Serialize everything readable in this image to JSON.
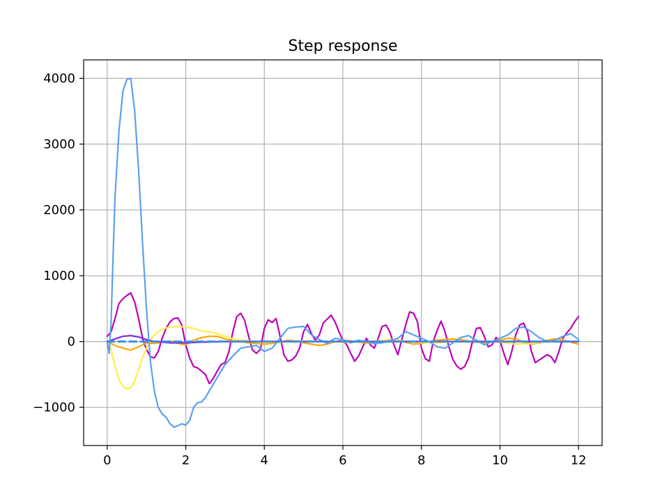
{
  "chart_data": {
    "type": "line",
    "title": "Step response",
    "xlabel": "",
    "ylabel": "",
    "xlim": [
      -0.6,
      12.6
    ],
    "ylim": [
      -1580,
      4280
    ],
    "xticks": [
      0,
      2,
      4,
      6,
      8,
      10,
      12
    ],
    "yticks": [
      -1000,
      0,
      1000,
      2000,
      3000,
      4000
    ],
    "xtick_labels": [
      "0",
      "2",
      "4",
      "6",
      "8",
      "10",
      "12"
    ],
    "ytick_labels": [
      "−1000",
      "0",
      "1000",
      "2000",
      "3000",
      "4000"
    ],
    "grid": true,
    "legend": "none",
    "series": [
      {
        "color": "#bb00bb",
        "style": "solid",
        "x": [
          0,
          0.1,
          0.2,
          0.3,
          0.4,
          0.5,
          0.6,
          0.7,
          0.8,
          0.9,
          1.0,
          1.1,
          1.2,
          1.3,
          1.4,
          1.5,
          1.6,
          1.7,
          1.8,
          1.9,
          2.0,
          2.1,
          2.2,
          2.3,
          2.4,
          2.5,
          2.6,
          2.7,
          2.8,
          2.9,
          3.0,
          3.1,
          3.2,
          3.3,
          3.4,
          3.5,
          3.6,
          3.7,
          3.8,
          3.9,
          4.0,
          4.1,
          4.2,
          4.3,
          4.4,
          4.5,
          4.6,
          4.7,
          4.8,
          4.9,
          5.0,
          5.1,
          5.2,
          5.3,
          5.4,
          5.5,
          5.6,
          5.7,
          5.8,
          5.9,
          6.0,
          6.1,
          6.2,
          6.3,
          6.4,
          6.5,
          6.6,
          6.7,
          6.8,
          6.9,
          7.0,
          7.1,
          7.2,
          7.3,
          7.4,
          7.5,
          7.6,
          7.7,
          7.8,
          7.9,
          8.0,
          8.1,
          8.2,
          8.3,
          8.4,
          8.5,
          8.6,
          8.7,
          8.8,
          8.9,
          9.0,
          9.1,
          9.2,
          9.3,
          9.4,
          9.5,
          9.6,
          9.7,
          9.8,
          9.9,
          10.0,
          10.1,
          10.2,
          10.3,
          10.4,
          10.5,
          10.6,
          10.7,
          10.8,
          10.9,
          11.0,
          11.1,
          11.2,
          11.3,
          11.4,
          11.5,
          11.6,
          11.7,
          11.8,
          11.9,
          12.0
        ],
        "y": [
          80,
          150,
          350,
          580,
          650,
          700,
          740,
          600,
          350,
          50,
          -120,
          -230,
          -250,
          -150,
          50,
          200,
          300,
          350,
          360,
          250,
          -50,
          -250,
          -380,
          -400,
          -450,
          -500,
          -640,
          -560,
          -450,
          -350,
          -320,
          -150,
          150,
          380,
          430,
          320,
          80,
          -130,
          -180,
          -120,
          200,
          330,
          290,
          350,
          80,
          -200,
          -300,
          -280,
          -220,
          -100,
          150,
          260,
          120,
          20,
          100,
          280,
          340,
          400,
          300,
          150,
          20,
          -50,
          -180,
          -300,
          -220,
          -90,
          50,
          -50,
          -100,
          50,
          230,
          250,
          140,
          -50,
          -200,
          30,
          250,
          450,
          430,
          300,
          -100,
          -260,
          -300,
          0,
          170,
          310,
          150,
          -80,
          -270,
          -370,
          -420,
          -380,
          -250,
          0,
          200,
          210,
          80,
          -80,
          -50,
          60,
          10,
          -180,
          -350,
          -150,
          100,
          250,
          280,
          150,
          -150,
          -320,
          -280,
          -240,
          -200,
          -230,
          -320,
          -150,
          50,
          130,
          200,
          300,
          380
        ]
      },
      {
        "color": "#ffa500",
        "style": "solid",
        "x": [
          0,
          0.2,
          0.4,
          0.6,
          0.8,
          1.0,
          1.2,
          1.4,
          1.6,
          1.8,
          2.0,
          2.2,
          2.4,
          2.6,
          2.8,
          3.0,
          3.2,
          3.4,
          3.6,
          3.8,
          4.0,
          4.2,
          4.4,
          4.6,
          4.8,
          5.0,
          5.2,
          5.4,
          5.6,
          5.8,
          6.0,
          6.2,
          6.4,
          6.6,
          6.8,
          7.0,
          7.2,
          7.4,
          7.6,
          7.8,
          8.0,
          8.2,
          8.4,
          8.6,
          8.8,
          9.0,
          9.2,
          9.4,
          9.6,
          9.8,
          10.0,
          10.2,
          10.4,
          10.6,
          10.8,
          11.0,
          11.2,
          11.4,
          11.6,
          11.8,
          12.0
        ],
        "y": [
          0,
          -60,
          -100,
          -130,
          -80,
          -20,
          -30,
          -10,
          10,
          -30,
          -50,
          20,
          60,
          80,
          80,
          40,
          10,
          0,
          -20,
          -30,
          -40,
          -30,
          -10,
          20,
          10,
          -20,
          -40,
          -60,
          -40,
          0,
          20,
          10,
          -10,
          -20,
          -20,
          10,
          30,
          20,
          -10,
          -40,
          -30,
          0,
          20,
          30,
          40,
          30,
          10,
          -10,
          -20,
          -10,
          20,
          50,
          40,
          -10,
          -40,
          -20,
          20,
          40,
          30,
          -10,
          -40
        ]
      },
      {
        "color": "#ffee44",
        "style": "solid",
        "x": [
          0,
          0.1,
          0.2,
          0.3,
          0.4,
          0.5,
          0.6,
          0.7,
          0.8,
          0.9,
          1.0,
          1.1,
          1.2,
          1.3,
          1.4,
          1.6,
          1.8,
          2.0,
          2.2,
          2.4,
          2.6,
          2.8,
          3.0,
          3.2,
          3.4,
          3.6,
          3.8,
          4.0,
          4.4,
          4.8,
          5.2,
          5.6,
          6.0,
          6.4,
          6.8,
          7.2,
          7.6,
          8.0,
          8.4,
          8.8,
          9.2,
          9.6,
          10.0,
          10.4,
          10.8,
          11.2,
          11.6,
          12.0
        ],
        "y": [
          0,
          -120,
          -380,
          -580,
          -680,
          -720,
          -700,
          -600,
          -430,
          -250,
          -100,
          20,
          100,
          150,
          190,
          220,
          230,
          220,
          200,
          160,
          150,
          120,
          80,
          40,
          20,
          10,
          0,
          -10,
          -10,
          10,
          10,
          0,
          -10,
          -10,
          10,
          20,
          10,
          -20,
          -20,
          0,
          10,
          10,
          -10,
          -40,
          -30,
          0,
          10,
          0
        ]
      },
      {
        "color": "#7a2be2",
        "style": "solid",
        "x": [
          0,
          0.2,
          0.4,
          0.6,
          0.8,
          1.0,
          1.2,
          1.6,
          2.0,
          2.4,
          3.0,
          4.0,
          5.0,
          6.0,
          8.0,
          10.0,
          12.0
        ],
        "y": [
          0,
          40,
          80,
          90,
          70,
          30,
          0,
          -20,
          -20,
          -10,
          0,
          0,
          0,
          0,
          0,
          0,
          0
        ]
      },
      {
        "color": "#5aa0f0",
        "style": "solid",
        "x": [
          0,
          0.05,
          0.1,
          0.15,
          0.2,
          0.3,
          0.4,
          0.5,
          0.6,
          0.7,
          0.8,
          0.9,
          1.0,
          1.1,
          1.2,
          1.3,
          1.4,
          1.5,
          1.6,
          1.7,
          1.8,
          1.9,
          2.0,
          2.1,
          2.2,
          2.3,
          2.4,
          2.5,
          2.6,
          2.7,
          2.8,
          2.9,
          3.0,
          3.2,
          3.4,
          3.6,
          3.8,
          4.0,
          4.2,
          4.4,
          4.6,
          4.8,
          5.0,
          5.2,
          5.4,
          5.6,
          5.8,
          6.0,
          6.2,
          6.4,
          6.6,
          6.8,
          7.0,
          7.2,
          7.4,
          7.6,
          7.8,
          8.0,
          8.2,
          8.4,
          8.6,
          8.8,
          9.0,
          9.2,
          9.4,
          9.6,
          9.8,
          10.0,
          10.2,
          10.4,
          10.6,
          10.8,
          11.0,
          11.2,
          11.4,
          11.6,
          11.8,
          12.0
        ],
        "y": [
          0,
          -180,
          300,
          1300,
          2200,
          3200,
          3800,
          3980,
          4000,
          3500,
          2600,
          1500,
          500,
          -300,
          -750,
          -1000,
          -1100,
          -1150,
          -1250,
          -1300,
          -1280,
          -1250,
          -1270,
          -1200,
          -1000,
          -930,
          -920,
          -850,
          -750,
          -650,
          -550,
          -450,
          -350,
          -220,
          -100,
          -80,
          -60,
          -150,
          -100,
          50,
          200,
          220,
          230,
          100,
          30,
          -30,
          50,
          30,
          -20,
          20,
          0,
          -30,
          -20,
          10,
          50,
          150,
          100,
          50,
          0,
          -80,
          -100,
          -20,
          60,
          90,
          20,
          -50,
          0,
          50,
          100,
          200,
          220,
          150,
          60,
          0,
          20,
          80,
          120,
          30
        ]
      },
      {
        "color": "#3a8ee6",
        "style": "dashed",
        "x": [
          0,
          12
        ],
        "y": [
          0,
          0
        ]
      }
    ]
  }
}
